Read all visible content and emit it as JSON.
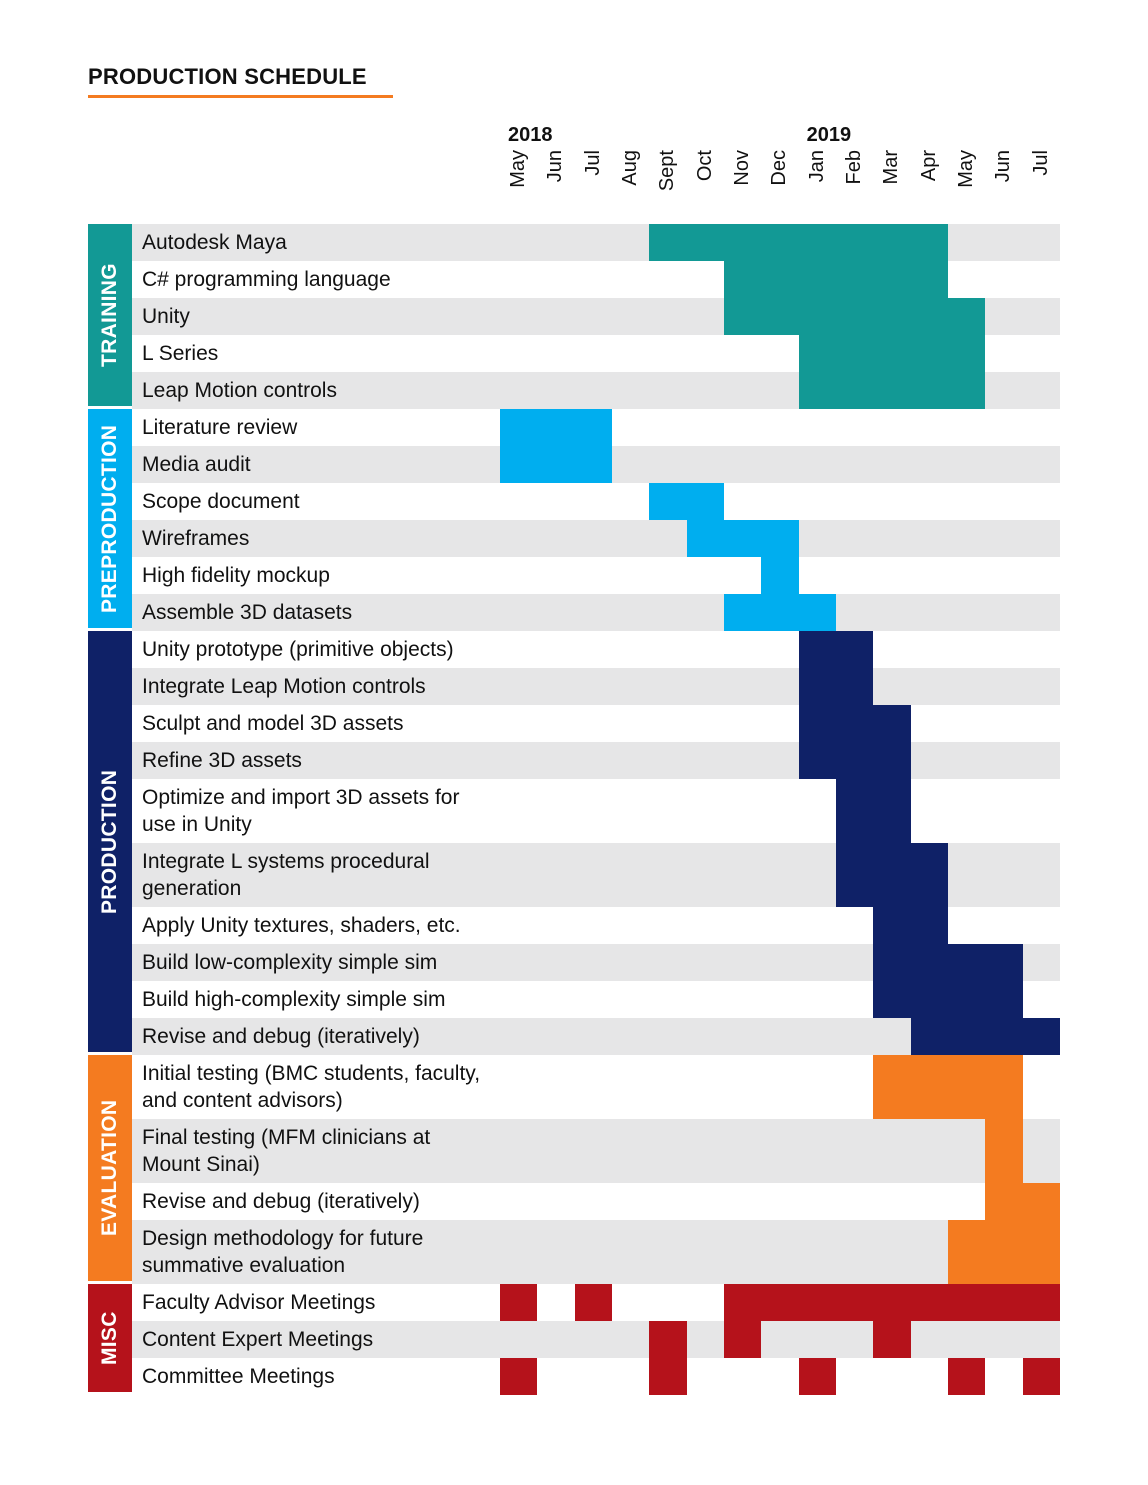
{
  "chart_data": {
    "type": "gantt",
    "title": "PRODUCTION SCHEDULE",
    "years": [
      {
        "label": "2018",
        "month_index": 0
      },
      {
        "label": "2019",
        "month_index": 8
      }
    ],
    "months": [
      "May",
      "Jun",
      "Jul",
      "Aug",
      "Sept",
      "Oct",
      "Nov",
      "Dec",
      "Jan",
      "Feb",
      "Mar",
      "Apr",
      "May",
      "Jun",
      "Jul"
    ],
    "categories": [
      {
        "name": "TRAINING",
        "color": "#129995",
        "tasks": [
          {
            "label": "Autodesk Maya",
            "lines": 1,
            "spans": [
              [
                4,
                12
              ]
            ]
          },
          {
            "label": "C# programming language",
            "lines": 1,
            "spans": [
              [
                6,
                12
              ]
            ]
          },
          {
            "label": "Unity",
            "lines": 1,
            "spans": [
              [
                6,
                13
              ]
            ]
          },
          {
            "label": "L Series",
            "lines": 1,
            "spans": [
              [
                8,
                13
              ]
            ]
          },
          {
            "label": "Leap Motion controls",
            "lines": 1,
            "spans": [
              [
                8,
                13
              ]
            ]
          }
        ]
      },
      {
        "name": "PREPRODUCTION",
        "color": "#00aeef",
        "tasks": [
          {
            "label": "Literature review",
            "lines": 1,
            "spans": [
              [
                0,
                3
              ]
            ]
          },
          {
            "label": "Media audit",
            "lines": 1,
            "spans": [
              [
                0,
                3
              ]
            ]
          },
          {
            "label": "Scope document",
            "lines": 1,
            "spans": [
              [
                4,
                6
              ]
            ]
          },
          {
            "label": "Wireframes",
            "lines": 1,
            "spans": [
              [
                5,
                8
              ]
            ]
          },
          {
            "label": "High fidelity mockup",
            "lines": 1,
            "spans": [
              [
                7,
                8
              ]
            ]
          },
          {
            "label": "Assemble 3D datasets",
            "lines": 1,
            "spans": [
              [
                6,
                9
              ]
            ]
          }
        ]
      },
      {
        "name": "PRODUCTION",
        "color": "#0f2167",
        "tasks": [
          {
            "label": "Unity prototype (primitive objects)",
            "lines": 1,
            "spans": [
              [
                8,
                10
              ]
            ]
          },
          {
            "label": "Integrate Leap Motion controls",
            "lines": 1,
            "spans": [
              [
                8,
                10
              ]
            ]
          },
          {
            "label": "Sculpt and model 3D assets",
            "lines": 1,
            "spans": [
              [
                8,
                11
              ]
            ]
          },
          {
            "label": "Refine 3D assets",
            "lines": 1,
            "spans": [
              [
                8,
                11
              ]
            ]
          },
          {
            "label": "Optimize and import 3D assets for use in Unity",
            "lines": 2,
            "spans": [
              [
                9,
                11
              ]
            ]
          },
          {
            "label": "Integrate L systems procedural generation",
            "lines": 2,
            "spans": [
              [
                9,
                12
              ]
            ]
          },
          {
            "label": "Apply Unity textures, shaders, etc.",
            "lines": 1,
            "spans": [
              [
                10,
                12
              ]
            ]
          },
          {
            "label": "Build low-complexity simple sim",
            "lines": 1,
            "spans": [
              [
                10,
                14
              ]
            ]
          },
          {
            "label": "Build high-complexity simple sim",
            "lines": 1,
            "spans": [
              [
                10,
                14
              ]
            ]
          },
          {
            "label": "Revise and debug (iteratively)",
            "lines": 1,
            "spans": [
              [
                11,
                15
              ]
            ]
          }
        ]
      },
      {
        "name": "EVALUATION",
        "color": "#f47b20",
        "tasks": [
          {
            "label": "Initial testing (BMC students, faculty, and content advisors)",
            "lines": 2,
            "spans": [
              [
                10,
                14
              ]
            ]
          },
          {
            "label": "Final testing (MFM clinicians at Mount Sinai)",
            "lines": 2,
            "spans": [
              [
                13,
                14
              ]
            ]
          },
          {
            "label": "Revise and debug (iteratively)",
            "lines": 1,
            "spans": [
              [
                13,
                15
              ]
            ]
          },
          {
            "label": "Design methodology for future summative evaluation",
            "lines": 2,
            "spans": [
              [
                12,
                15
              ]
            ]
          }
        ]
      },
      {
        "name": "MISC",
        "color": "#b5121b",
        "tasks": [
          {
            "label": "Faculty Advisor Meetings",
            "lines": 1,
            "spans": [
              [
                0,
                1
              ],
              [
                2,
                3
              ],
              [
                6,
                15
              ]
            ]
          },
          {
            "label": "Content Expert Meetings",
            "lines": 1,
            "spans": [
              [
                4,
                5
              ],
              [
                6,
                7
              ],
              [
                10,
                11
              ]
            ]
          },
          {
            "label": "Committee Meetings",
            "lines": 1,
            "spans": [
              [
                0,
                1
              ],
              [
                4,
                5
              ],
              [
                8,
                9
              ],
              [
                12,
                13
              ],
              [
                14,
                15
              ]
            ]
          }
        ]
      }
    ]
  }
}
